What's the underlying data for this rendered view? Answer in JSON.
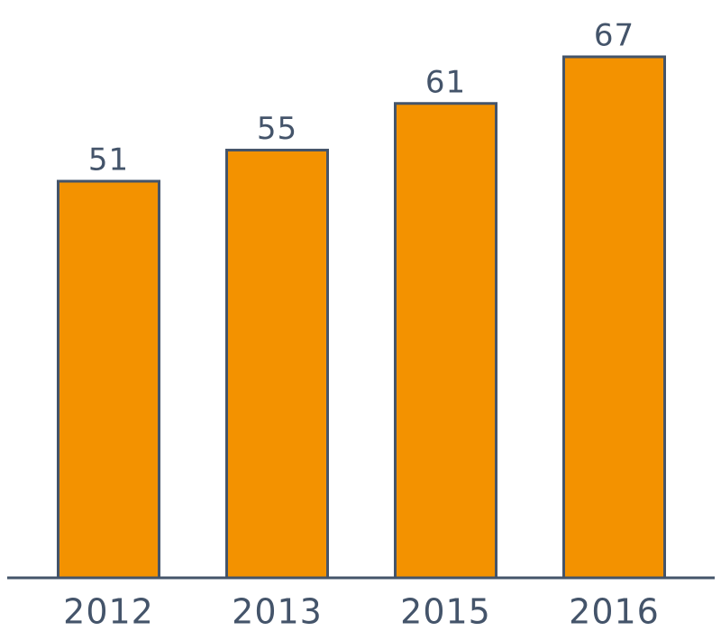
{
  "chart_data": {
    "type": "bar",
    "categories": [
      "2012",
      "2013",
      "2015",
      "2016"
    ],
    "values": [
      51,
      55,
      61,
      67
    ],
    "color": "#f39200"
  }
}
